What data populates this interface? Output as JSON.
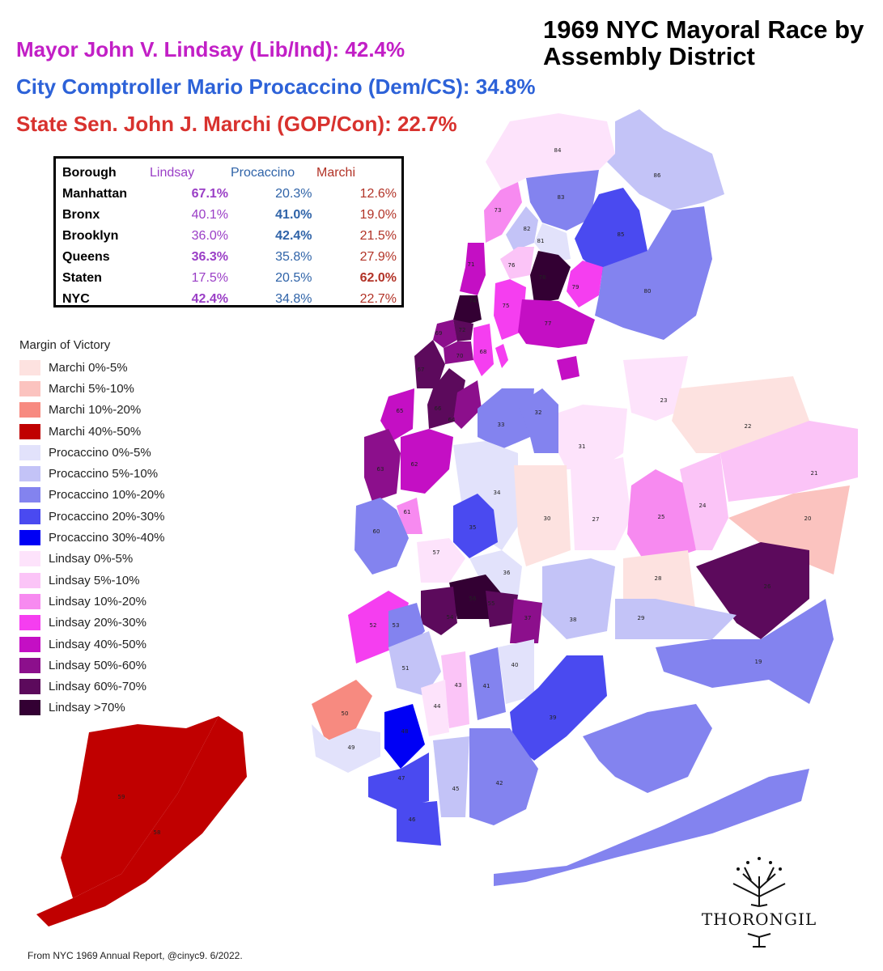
{
  "title": "1969 NYC Mayoral Race by Assembly District",
  "candidates": {
    "lindsay": "Mayor John V. Lindsay (Lib/Ind): 42.4%",
    "procaccino": "City Comptroller Mario Procaccino (Dem/CS): 34.8%",
    "marchi": "State Sen. John J. Marchi (GOP/Con): 22.7%"
  },
  "table": {
    "headers": [
      "Borough",
      "Lindsay",
      "Procaccino",
      "Marchi"
    ],
    "rows": [
      {
        "name": "Manhattan",
        "lindsay": "67.1%",
        "procaccino": "20.3%",
        "marchi": "12.6%",
        "winner": "lindsay"
      },
      {
        "name": "Bronx",
        "lindsay": "40.1%",
        "procaccino": "41.0%",
        "marchi": "19.0%",
        "winner": "procaccino"
      },
      {
        "name": "Brooklyn",
        "lindsay": "36.0%",
        "procaccino": "42.4%",
        "marchi": "21.5%",
        "winner": "procaccino"
      },
      {
        "name": "Queens",
        "lindsay": "36.3%",
        "procaccino": "35.8%",
        "marchi": "27.9%",
        "winner": "lindsay"
      },
      {
        "name": "Staten",
        "lindsay": "17.5%",
        "procaccino": "20.5%",
        "marchi": "62.0%",
        "winner": "marchi"
      },
      {
        "name": "NYC",
        "lindsay": "42.4%",
        "procaccino": "34.8%",
        "marchi": "22.7%",
        "winner": "lindsay"
      }
    ]
  },
  "legend": {
    "title": "Margin of Victory",
    "items": [
      {
        "label": "Marchi 0%-5%",
        "color": "#fde2e0"
      },
      {
        "label": "Marchi 5%-10%",
        "color": "#fbc3bf"
      },
      {
        "label": "Marchi 10%-20%",
        "color": "#f78a80"
      },
      {
        "label": "Marchi 40%-50%",
        "color": "#c00000"
      },
      {
        "label": "Procaccino 0%-5%",
        "color": "#e2e2fb"
      },
      {
        "label": "Procaccino 5%-10%",
        "color": "#c3c3f7"
      },
      {
        "label": "Procaccino 10%-20%",
        "color": "#8383ef"
      },
      {
        "label": "Procaccino 20%-30%",
        "color": "#4a4af0"
      },
      {
        "label": "Procaccino 30%-40%",
        "color": "#0000f5"
      },
      {
        "label": "Lindsay 0%-5%",
        "color": "#fde3fb"
      },
      {
        "label": "Lindsay 5%-10%",
        "color": "#fbc4f7"
      },
      {
        "label": "Lindsay 10%-20%",
        "color": "#f78af0"
      },
      {
        "label": "Lindsay 20%-30%",
        "color": "#f53ef0"
      },
      {
        "label": "Lindsay 40%-50%",
        "color": "#c40fc4"
      },
      {
        "label": "Lindsay 50%-60%",
        "color": "#8c0f8c"
      },
      {
        "label": "Lindsay 60%-70%",
        "color": "#5c0a5c"
      },
      {
        "label": "Lindsay >70%",
        "color": "#330033"
      }
    ]
  },
  "districts": [
    {
      "id": "84",
      "category": "Lindsay 0%-5%"
    },
    {
      "id": "86",
      "category": "Procaccino 5%-10%"
    },
    {
      "id": "83",
      "category": "Procaccino 10%-20%"
    },
    {
      "id": "85",
      "category": "Procaccino 20%-30%"
    },
    {
      "id": "73",
      "category": "Lindsay 10%-20%"
    },
    {
      "id": "82",
      "category": "Procaccino 5%-10%"
    },
    {
      "id": "81",
      "category": "Procaccino 0%-5%"
    },
    {
      "id": "76",
      "category": "Lindsay 5%-10%"
    },
    {
      "id": "78",
      "category": "Lindsay >70%"
    },
    {
      "id": "79",
      "category": "Lindsay 20%-30%"
    },
    {
      "id": "80",
      "category": "Procaccino 10%-20%"
    },
    {
      "id": "75",
      "category": "Lindsay 20%-30%"
    },
    {
      "id": "77",
      "category": "Lindsay 40%-50%"
    },
    {
      "id": "71",
      "category": "Lindsay 40%-50%"
    },
    {
      "id": "74",
      "category": "Lindsay >70%"
    },
    {
      "id": "69",
      "category": "Lindsay 50%-60%"
    },
    {
      "id": "72",
      "category": "Lindsay 60%-70%"
    },
    {
      "id": "70",
      "category": "Lindsay 50%-60%"
    },
    {
      "id": "68",
      "category": "Lindsay 20%-30%"
    },
    {
      "id": "67",
      "category": "Lindsay 60%-70%"
    },
    {
      "id": "65",
      "category": "Lindsay 40%-50%"
    },
    {
      "id": "66",
      "category": "Lindsay 60%-70%"
    },
    {
      "id": "64",
      "category": "Lindsay 50%-60%"
    },
    {
      "id": "63",
      "category": "Lindsay 50%-60%"
    },
    {
      "id": "62",
      "category": "Lindsay 40%-50%"
    },
    {
      "id": "61",
      "category": "Lindsay 10%-20%"
    },
    {
      "id": "60",
      "category": "Procaccino 10%-20%"
    },
    {
      "id": "33",
      "category": "Procaccino 10%-20%"
    },
    {
      "id": "32",
      "category": "Procaccino 10%-20%"
    },
    {
      "id": "31",
      "category": "Lindsay 0%-5%"
    },
    {
      "id": "23",
      "category": "Lindsay 0%-5%"
    },
    {
      "id": "22",
      "category": "Marchi 0%-5%"
    },
    {
      "id": "21",
      "category": "Lindsay 5%-10%"
    },
    {
      "id": "20",
      "category": "Marchi 5%-10%"
    },
    {
      "id": "34",
      "category": "Procaccino 0%-5%"
    },
    {
      "id": "30",
      "category": "Marchi 0%-5%"
    },
    {
      "id": "27",
      "category": "Lindsay 0%-5%"
    },
    {
      "id": "25",
      "category": "Lindsay 10%-20%"
    },
    {
      "id": "24",
      "category": "Lindsay 5%-10%"
    },
    {
      "id": "35",
      "category": "Procaccino 20%-30%"
    },
    {
      "id": "57",
      "category": "Lindsay 0%-5%"
    },
    {
      "id": "36",
      "category": "Procaccino 0%-5%"
    },
    {
      "id": "28",
      "category": "Marchi 0%-5%"
    },
    {
      "id": "26",
      "category": "Lindsay 60%-70%"
    },
    {
      "id": "56",
      "category": "Lindsay >70%"
    },
    {
      "id": "55",
      "category": "Lindsay 60%-70%"
    },
    {
      "id": "54",
      "category": "Lindsay 60%-70%"
    },
    {
      "id": "37",
      "category": "Lindsay 50%-60%"
    },
    {
      "id": "38",
      "category": "Procaccino 5%-10%"
    },
    {
      "id": "29",
      "category": "Procaccino 5%-10%"
    },
    {
      "id": "19",
      "category": "Procaccino 10%-20%"
    },
    {
      "id": "52",
      "category": "Lindsay 20%-30%"
    },
    {
      "id": "53",
      "category": "Procaccino 10%-20%"
    },
    {
      "id": "51",
      "category": "Procaccino 5%-10%"
    },
    {
      "id": "40",
      "category": "Procaccino 0%-5%"
    },
    {
      "id": "41",
      "category": "Procaccino 10%-20%"
    },
    {
      "id": "43",
      "category": "Lindsay 5%-10%"
    },
    {
      "id": "44",
      "category": "Lindsay 0%-5%"
    },
    {
      "id": "39",
      "category": "Procaccino 20%-30%"
    },
    {
      "id": "50",
      "category": "Marchi 10%-20%"
    },
    {
      "id": "49",
      "category": "Procaccino 0%-5%"
    },
    {
      "id": "48",
      "category": "Procaccino 30%-40%"
    },
    {
      "id": "47",
      "category": "Procaccino 20%-30%"
    },
    {
      "id": "45",
      "category": "Procaccino 5%-10%"
    },
    {
      "id": "42",
      "category": "Procaccino 10%-20%"
    },
    {
      "id": "46",
      "category": "Procaccino 20%-30%"
    },
    {
      "id": "59",
      "category": "Marchi 40%-50%"
    },
    {
      "id": "58",
      "category": "Marchi 40%-50%"
    }
  ],
  "source": "From NYC 1969 Annual Report, @cinyc9. 6/2022.",
  "logo_text": "THORONGIL"
}
